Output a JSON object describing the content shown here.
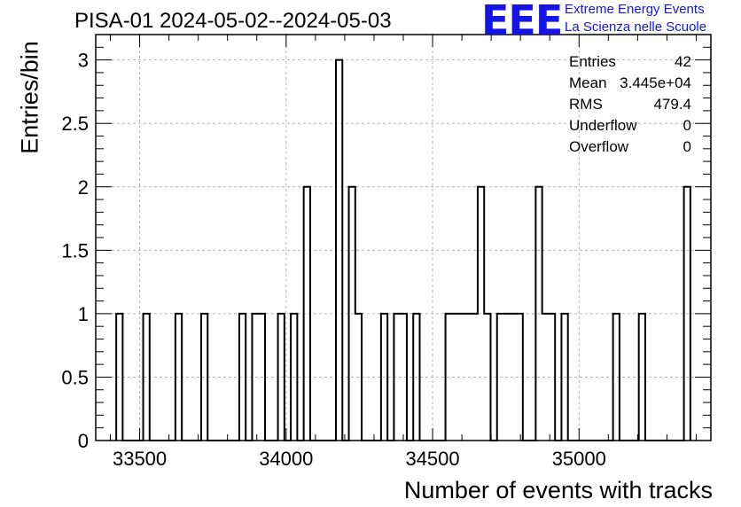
{
  "title": "PISA-01 2024-05-02--2024-05-03",
  "logo": {
    "mark": "EEE",
    "line1": "Extreme Energy Events",
    "line2": "La Scienza nelle Scuole",
    "color": "#1414e6"
  },
  "stats": [
    {
      "key": "Entries",
      "value": "42"
    },
    {
      "key": "Mean",
      "value": "3.445e+04"
    },
    {
      "key": "RMS",
      "value": "479.4"
    },
    {
      "key": "Underflow",
      "value": "0"
    },
    {
      "key": "Overflow",
      "value": "0"
    }
  ],
  "chart_data": {
    "type": "bar",
    "subtype": "step-histogram",
    "title": "PISA-01 2024-05-02--2024-05-03",
    "xlabel": "Number of events with tracks",
    "ylabel": "Entries/bin",
    "xlim": [
      33350,
      35450
    ],
    "ylim": [
      0,
      3.2
    ],
    "x_ticks": [
      33500,
      34000,
      34500,
      35000
    ],
    "y_ticks": [
      0,
      0.5,
      1,
      1.5,
      2,
      2.5,
      3
    ],
    "x_tick_labels": [
      "33500",
      "34000",
      "34500",
      "35000"
    ],
    "y_tick_labels": [
      "0",
      "0.5",
      "1",
      "1.5",
      "2",
      "2.5",
      "3"
    ],
    "grid": true,
    "line_color": "#000000",
    "bins": [
      {
        "x0": 33420,
        "x1": 33442,
        "y": 1
      },
      {
        "x0": 33512,
        "x1": 33534,
        "y": 1
      },
      {
        "x0": 33622,
        "x1": 33644,
        "y": 1
      },
      {
        "x0": 33710,
        "x1": 33732,
        "y": 1
      },
      {
        "x0": 33840,
        "x1": 33862,
        "y": 1
      },
      {
        "x0": 33884,
        "x1": 33928,
        "y": 1
      },
      {
        "x0": 33972,
        "x1": 33994,
        "y": 1
      },
      {
        "x0": 34016,
        "x1": 34038,
        "y": 1
      },
      {
        "x0": 34060,
        "x1": 34082,
        "y": 2
      },
      {
        "x0": 34170,
        "x1": 34192,
        "y": 3
      },
      {
        "x0": 34214,
        "x1": 34236,
        "y": 2
      },
      {
        "x0": 34236,
        "x1": 34258,
        "y": 1
      },
      {
        "x0": 34324,
        "x1": 34346,
        "y": 1
      },
      {
        "x0": 34368,
        "x1": 34412,
        "y": 1
      },
      {
        "x0": 34434,
        "x1": 34456,
        "y": 1
      },
      {
        "x0": 34544,
        "x1": 34654,
        "y": 1
      },
      {
        "x0": 34654,
        "x1": 34676,
        "y": 2
      },
      {
        "x0": 34676,
        "x1": 34698,
        "y": 1
      },
      {
        "x0": 34720,
        "x1": 34808,
        "y": 1
      },
      {
        "x0": 34852,
        "x1": 34874,
        "y": 2
      },
      {
        "x0": 34874,
        "x1": 34918,
        "y": 1
      },
      {
        "x0": 34940,
        "x1": 34962,
        "y": 1
      },
      {
        "x0": 35116,
        "x1": 35138,
        "y": 1
      },
      {
        "x0": 35204,
        "x1": 35226,
        "y": 1
      },
      {
        "x0": 35358,
        "x1": 35380,
        "y": 2
      }
    ]
  }
}
